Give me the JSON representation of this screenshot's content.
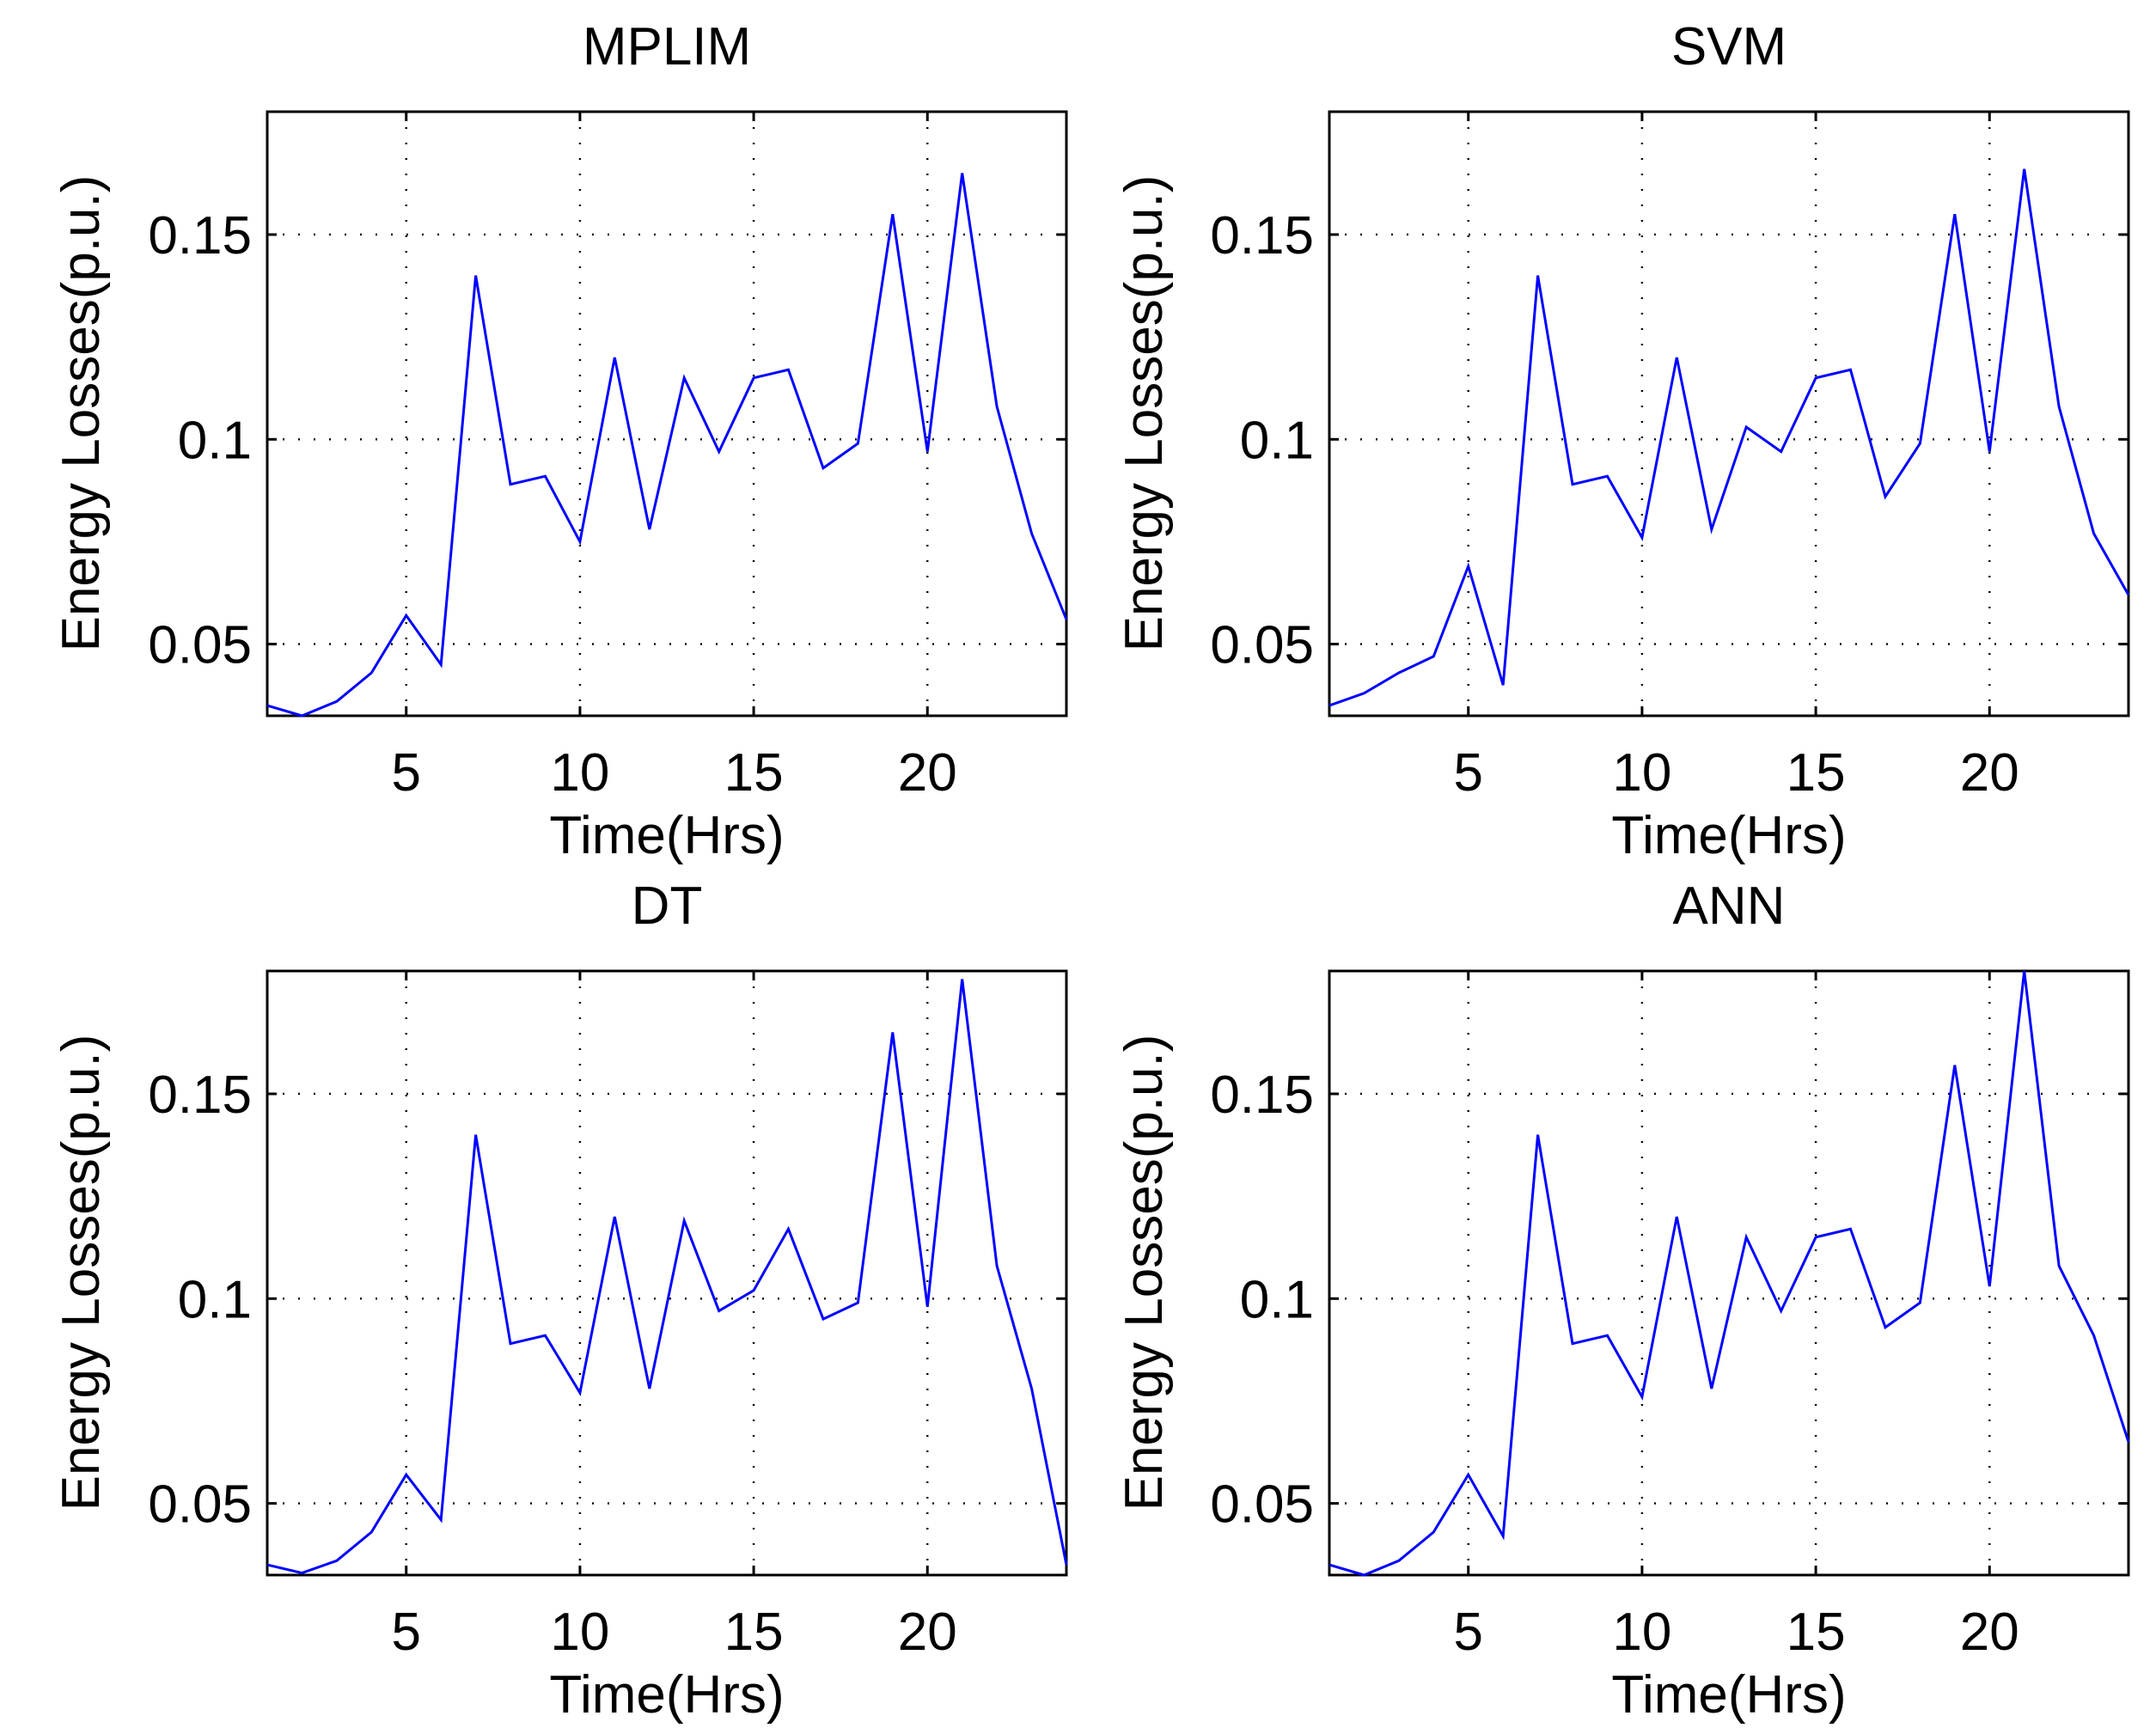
{
  "figure": {
    "background": "#ffffff",
    "line_color": "#0000ff",
    "axis_color": "#000000"
  },
  "chart_data": [
    {
      "type": "line",
      "title": "MPLIM",
      "xlabel": "Time(Hrs)",
      "ylabel": "Energy Losses(p.u.)",
      "xlim": [
        1,
        24
      ],
      "ylim": [
        0.0325,
        0.18
      ],
      "xticks": [
        5,
        10,
        15,
        20
      ],
      "xtick_labels": [
        "5",
        "10",
        "15",
        "20"
      ],
      "yticks": [
        0.05,
        0.1,
        0.15
      ],
      "ytick_labels": [
        "0.05",
        "0.1",
        "0.15"
      ],
      "grid": true,
      "x": [
        1,
        2,
        3,
        4,
        5,
        6,
        7,
        8,
        9,
        10,
        11,
        12,
        13,
        14,
        15,
        16,
        17,
        18,
        19,
        20,
        21,
        22,
        23,
        24
      ],
      "values": [
        0.035,
        0.0325,
        0.036,
        0.043,
        0.057,
        0.045,
        0.14,
        0.089,
        0.091,
        0.075,
        0.12,
        0.078,
        0.115,
        0.097,
        0.115,
        0.117,
        0.093,
        0.099,
        0.155,
        0.097,
        0.165,
        0.108,
        0.077,
        0.056
      ]
    },
    {
      "type": "line",
      "title": "SVM",
      "xlabel": "Time(Hrs)",
      "ylabel": "Energy Losses(p.u.)",
      "xlim": [
        1,
        24
      ],
      "ylim": [
        0.0325,
        0.18
      ],
      "xticks": [
        5,
        10,
        15,
        20
      ],
      "xtick_labels": [
        "5",
        "10",
        "15",
        "20"
      ],
      "yticks": [
        0.05,
        0.1,
        0.15
      ],
      "ytick_labels": [
        "0.05",
        "0.1",
        "0.15"
      ],
      "grid": true,
      "x": [
        1,
        2,
        3,
        4,
        5,
        6,
        7,
        8,
        9,
        10,
        11,
        12,
        13,
        14,
        15,
        16,
        17,
        18,
        19,
        20,
        21,
        22,
        23,
        24
      ],
      "values": [
        0.035,
        0.038,
        0.043,
        0.047,
        0.069,
        0.04,
        0.14,
        0.089,
        0.091,
        0.076,
        0.12,
        0.078,
        0.103,
        0.097,
        0.115,
        0.117,
        0.086,
        0.099,
        0.155,
        0.097,
        0.166,
        0.108,
        0.077,
        0.062
      ]
    },
    {
      "type": "line",
      "title": "DT",
      "xlabel": "Time(Hrs)",
      "ylabel": "Energy Losses(p.u.)",
      "xlim": [
        1,
        24
      ],
      "ylim": [
        0.0325,
        0.18
      ],
      "xticks": [
        5,
        10,
        15,
        20
      ],
      "xtick_labels": [
        "5",
        "10",
        "15",
        "20"
      ],
      "yticks": [
        0.05,
        0.1,
        0.15
      ],
      "ytick_labels": [
        "0.05",
        "0.1",
        "0.15"
      ],
      "grid": true,
      "x": [
        1,
        2,
        3,
        4,
        5,
        6,
        7,
        8,
        9,
        10,
        11,
        12,
        13,
        14,
        15,
        16,
        17,
        18,
        19,
        20,
        21,
        22,
        23,
        24
      ],
      "values": [
        0.035,
        0.033,
        0.036,
        0.043,
        0.057,
        0.046,
        0.14,
        0.089,
        0.091,
        0.077,
        0.12,
        0.078,
        0.119,
        0.097,
        0.102,
        0.117,
        0.095,
        0.099,
        0.165,
        0.098,
        0.178,
        0.108,
        0.078,
        0.035
      ]
    },
    {
      "type": "line",
      "title": "ANN",
      "xlabel": "Time(Hrs)",
      "ylabel": "Energy Losses(p.u.)",
      "xlim": [
        1,
        24
      ],
      "ylim": [
        0.0325,
        0.18
      ],
      "xticks": [
        5,
        10,
        15,
        20
      ],
      "xtick_labels": [
        "5",
        "10",
        "15",
        "20"
      ],
      "yticks": [
        0.05,
        0.1,
        0.15
      ],
      "ytick_labels": [
        "0.05",
        "0.1",
        "0.15"
      ],
      "grid": true,
      "x": [
        1,
        2,
        3,
        4,
        5,
        6,
        7,
        8,
        9,
        10,
        11,
        12,
        13,
        14,
        15,
        16,
        17,
        18,
        19,
        20,
        21,
        22,
        23,
        24
      ],
      "values": [
        0.035,
        0.0325,
        0.036,
        0.043,
        0.057,
        0.042,
        0.14,
        0.089,
        0.091,
        0.076,
        0.12,
        0.078,
        0.115,
        0.097,
        0.115,
        0.117,
        0.093,
        0.099,
        0.157,
        0.103,
        0.18,
        0.108,
        0.091,
        0.065
      ]
    }
  ]
}
